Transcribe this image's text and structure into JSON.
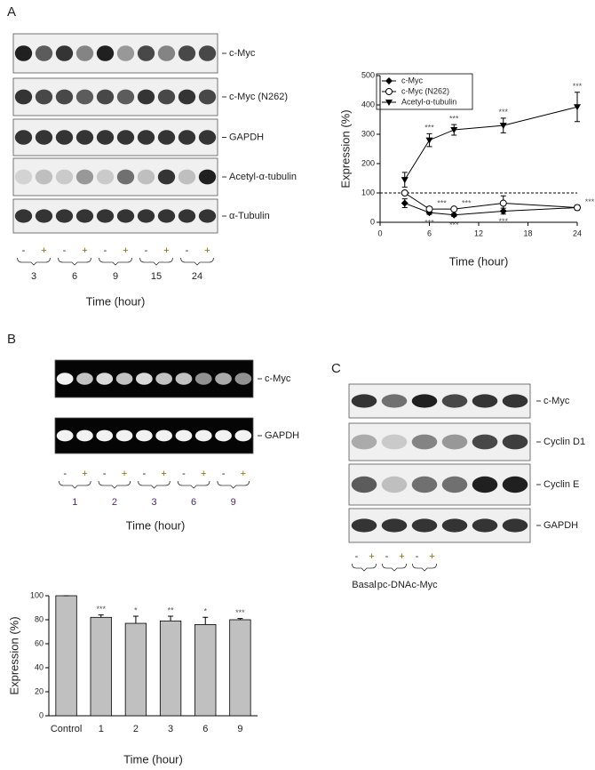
{
  "figure": {
    "panels": [
      "A",
      "B",
      "C"
    ]
  },
  "blot_a": {
    "rows": [
      "c-Myc",
      "c-Myc (N262)",
      "GAPDH",
      "Acetyl-α-tubulin",
      "α-Tubulin"
    ],
    "lanes": [
      "-",
      "+"
    ],
    "groups": [
      "3",
      "6",
      "9",
      "15",
      "24"
    ],
    "axis_label": "Time (hour)"
  },
  "gel_b": {
    "rows": [
      "c-Myc",
      "GAPDH"
    ],
    "lanes": [
      "-",
      "+"
    ],
    "groups": [
      "1",
      "2",
      "3",
      "6",
      "9"
    ],
    "axis_label": "Time (hour)"
  },
  "blot_c": {
    "rows": [
      "c-Myc",
      "Cyclin D1",
      "Cyclin E",
      "GAPDH"
    ],
    "lanes": [
      "-",
      "+"
    ],
    "groups": [
      "Basal",
      "pc-DNA",
      "c-Myc"
    ]
  },
  "chart_data": [
    {
      "type": "line",
      "x_label": "Time (hour)",
      "y_label": "Expression (%)",
      "x": [
        3,
        6,
        9,
        15,
        24
      ],
      "xlim": [
        0,
        24
      ],
      "xticks": [
        0,
        6,
        12,
        18,
        24
      ],
      "ylim": [
        0,
        500
      ],
      "yticks": [
        0,
        100,
        200,
        300,
        400,
        500
      ],
      "reference_line": 100,
      "legend": "top-left",
      "series": [
        {
          "name": "c-Myc",
          "color": "#000000",
          "marker": "diamond",
          "values": [
            65,
            33,
            25,
            38,
            50
          ],
          "errors": [
            15,
            6,
            5,
            10,
            6
          ],
          "point_labels": [
            null,
            "***",
            "***",
            "***",
            null
          ]
        },
        {
          "name": "c-Myc (N262)",
          "color": "#000000",
          "marker": "open-circle",
          "values": [
            100,
            45,
            45,
            65,
            50
          ],
          "errors": [
            5,
            8,
            6,
            25,
            8
          ],
          "point_labels": [
            null,
            "***",
            "***",
            null,
            "***"
          ]
        },
        {
          "name": "Acetyl-α-tubulin",
          "color": "#000000",
          "marker": "triangle-down",
          "values": [
            145,
            280,
            315,
            330,
            393
          ],
          "errors": [
            25,
            22,
            18,
            25,
            50
          ],
          "point_labels": [
            null,
            "***",
            "***",
            "***",
            "***"
          ]
        }
      ]
    },
    {
      "type": "bar",
      "x_label": "Time (hour)",
      "y_label": "Expression (%)",
      "categories": [
        "Control",
        "1",
        "2",
        "3",
        "6",
        "9"
      ],
      "values": [
        100,
        82,
        77,
        79,
        76,
        80
      ],
      "errors": [
        0,
        2,
        6,
        4,
        6,
        1
      ],
      "value_labels": [
        null,
        "***",
        "*",
        "**",
        "*",
        "***"
      ],
      "color": "#c0c0c0",
      "ylim": [
        0,
        100
      ],
      "yticks": [
        0,
        20,
        40,
        60,
        80,
        100
      ]
    }
  ]
}
